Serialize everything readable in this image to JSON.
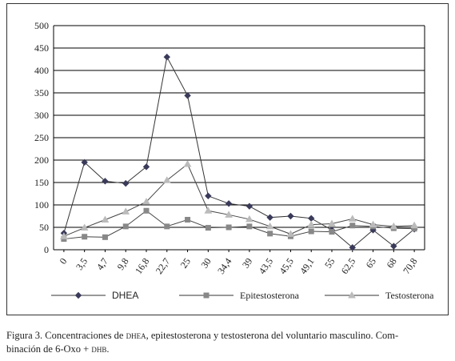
{
  "chart_data": {
    "type": "line",
    "categories": [
      "0",
      "3,5",
      "4,7",
      "9,8",
      "16,8",
      "22,7",
      "25",
      "30",
      "34,4",
      "39",
      "43,5",
      "45,5",
      "49,1",
      "55",
      "62,5",
      "65",
      "68",
      "70,8"
    ],
    "ylim": [
      0,
      500
    ],
    "yticks": [
      "0",
      "50",
      "100",
      "150",
      "200",
      "250",
      "300",
      "350",
      "400",
      "450",
      "500"
    ],
    "grid": "horizontal",
    "legend_position": "bottom",
    "series": [
      {
        "name": "DHEA",
        "marker": "diamond",
        "color": "#3a3a5a",
        "values": [
          37,
          195,
          153,
          148,
          185,
          430,
          344,
          120,
          103,
          97,
          72,
          75,
          70,
          44,
          5,
          44,
          8,
          46
        ]
      },
      {
        "name": "Epitestosterona",
        "marker": "square",
        "color": "#888888",
        "values": [
          24,
          29,
          28,
          52,
          87,
          52,
          67,
          49,
          50,
          52,
          36,
          30,
          41,
          40,
          54,
          52,
          48,
          47
        ]
      },
      {
        "name": "Testosterona",
        "marker": "triangle",
        "color": "#bbbbbb",
        "values": [
          30,
          49,
          67,
          85,
          107,
          155,
          191,
          87,
          78,
          68,
          52,
          35,
          56,
          58,
          69,
          56,
          52,
          54
        ]
      }
    ]
  },
  "caption": {
    "prefix": "Figura 3. Concentraciones de ",
    "sc1": "dhea",
    "mid": ", epitestosterona y testosterona del voluntario masculino. Com-",
    "line2": "binación de 6-Oxo + ",
    "sc2": "dhb",
    "end": "."
  }
}
